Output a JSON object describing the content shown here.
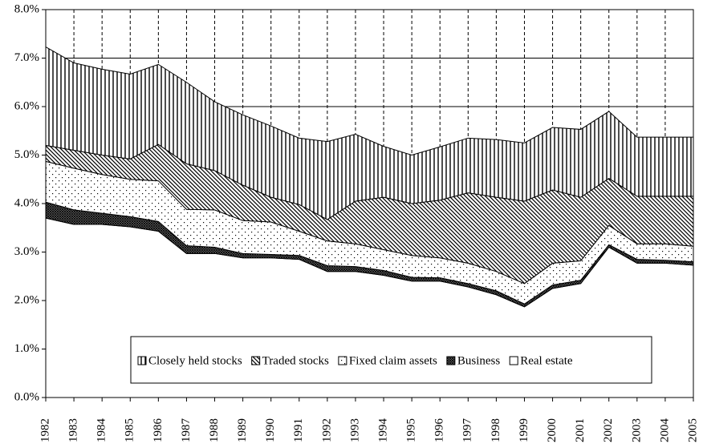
{
  "chart_data": {
    "type": "stacked-area",
    "categories": [
      "1982",
      "1983",
      "1984",
      "1985",
      "1986",
      "1987",
      "1988",
      "1989",
      "1990",
      "1991",
      "1992",
      "1993",
      "1994",
      "1995",
      "1996",
      "1997",
      "1998",
      "1999",
      "2000",
      "2001",
      "2002",
      "2003",
      "2004",
      "2005"
    ],
    "series": [
      {
        "name": "Real estate",
        "pattern": "none",
        "values": [
          3.7,
          3.57,
          3.57,
          3.52,
          3.43,
          2.97,
          2.97,
          2.88,
          2.88,
          2.85,
          2.6,
          2.6,
          2.52,
          2.4,
          2.4,
          2.28,
          2.12,
          1.87,
          2.25,
          2.35,
          3.1,
          2.77,
          2.77,
          2.73
        ]
      },
      {
        "name": "Business",
        "pattern": "cross",
        "values": [
          0.33,
          0.3,
          0.23,
          0.21,
          0.2,
          0.16,
          0.13,
          0.09,
          0.07,
          0.08,
          0.12,
          0.1,
          0.1,
          0.08,
          0.07,
          0.07,
          0.08,
          0.06,
          0.07,
          0.07,
          0.05,
          0.08,
          0.06,
          0.07
        ]
      },
      {
        "name": "Fixed claim assets",
        "pattern": "dots",
        "values": [
          0.84,
          0.86,
          0.8,
          0.77,
          0.84,
          0.75,
          0.77,
          0.68,
          0.67,
          0.5,
          0.51,
          0.47,
          0.43,
          0.45,
          0.41,
          0.42,
          0.4,
          0.42,
          0.45,
          0.4,
          0.4,
          0.32,
          0.34,
          0.32
        ]
      },
      {
        "name": "Traded stocks",
        "pattern": "diagonal",
        "values": [
          0.33,
          0.37,
          0.4,
          0.42,
          0.75,
          0.94,
          0.81,
          0.73,
          0.51,
          0.55,
          0.44,
          0.88,
          1.08,
          1.07,
          1.19,
          1.45,
          1.53,
          1.7,
          1.51,
          1.31,
          0.97,
          0.98,
          0.98,
          1.03
        ]
      },
      {
        "name": "Closely held stocks",
        "pattern": "vertical",
        "values": [
          2.03,
          1.8,
          1.77,
          1.75,
          1.65,
          1.68,
          1.42,
          1.45,
          1.47,
          1.37,
          1.61,
          1.38,
          1.05,
          1.0,
          1.1,
          1.13,
          1.19,
          1.2,
          1.29,
          1.4,
          1.38,
          1.22,
          1.22,
          1.22
        ]
      }
    ],
    "ylim": [
      0,
      8
    ],
    "yticks": [
      {
        "value": 0,
        "label": "0.0%"
      },
      {
        "value": 1,
        "label": "1.0%"
      },
      {
        "value": 2,
        "label": "2.0%"
      },
      {
        "value": 3,
        "label": "3.0%"
      },
      {
        "value": 4,
        "label": "4.0%"
      },
      {
        "value": 5,
        "label": "5.0%"
      },
      {
        "value": 6,
        "label": "6.0%"
      },
      {
        "value": 7,
        "label": "7.0%"
      },
      {
        "value": 8,
        "label": "8.0%"
      }
    ],
    "grid": true,
    "vertical_grid": "dashed",
    "legend": "bottom"
  }
}
